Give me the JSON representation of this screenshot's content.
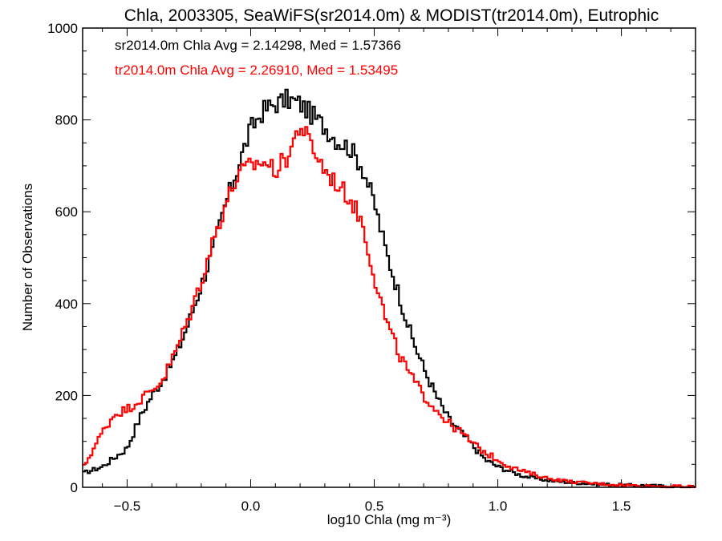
{
  "chart_data": {
    "type": "line",
    "title": "Chla, 2003305, SeaWiFS(sr2014.0m) & MODIST(tr2014.0m), Eutrophic",
    "xlabel": "log10 Chla (mg m⁻³)",
    "ylabel": "Number of Observations",
    "xlim": [
      -0.68,
      1.8
    ],
    "ylim": [
      0,
      1000
    ],
    "xticks": [
      -0.5,
      0.0,
      0.5,
      1.0,
      1.5
    ],
    "xtick_labels": [
      "−0.5",
      "0.0",
      "0.5",
      "1.0",
      "1.5"
    ],
    "yticks": [
      0,
      200,
      400,
      600,
      800,
      1000
    ],
    "ytick_labels": [
      "0",
      "200",
      "400",
      "600",
      "800",
      "1000"
    ],
    "grid": false,
    "annotations": [
      {
        "text": "sr2014.0m Chla Avg = 2.14298, Med = 1.57366",
        "color": "#000000"
      },
      {
        "text": "tr2014.0m Chla Avg = 2.26910, Med = 1.53495",
        "color": "#ff0000"
      }
    ],
    "series": [
      {
        "color": "#000000",
        "style": "step",
        "x": [
          -0.68,
          -0.6,
          -0.5,
          -0.45,
          -0.4,
          -0.35,
          -0.3,
          -0.25,
          -0.2,
          -0.15,
          -0.1,
          -0.05,
          0.0,
          0.05,
          0.1,
          0.15,
          0.2,
          0.25,
          0.3,
          0.35,
          0.4,
          0.45,
          0.5,
          0.55,
          0.6,
          0.65,
          0.7,
          0.75,
          0.8,
          0.85,
          0.9,
          0.95,
          1.0,
          1.05,
          1.1,
          1.2,
          1.3,
          1.4,
          1.5,
          1.6,
          1.7,
          1.8
        ],
        "y": [
          30,
          45,
          85,
          150,
          200,
          240,
          290,
          360,
          440,
          520,
          620,
          700,
          780,
          820,
          835,
          845,
          835,
          810,
          785,
          755,
          740,
          700,
          620,
          510,
          420,
          330,
          260,
          200,
          150,
          120,
          90,
          60,
          45,
          35,
          25,
          15,
          10,
          7,
          5,
          4,
          2,
          1
        ]
      },
      {
        "color": "#ff0000",
        "style": "step",
        "x": [
          -0.68,
          -0.6,
          -0.55,
          -0.5,
          -0.45,
          -0.4,
          -0.35,
          -0.3,
          -0.25,
          -0.2,
          -0.15,
          -0.1,
          -0.05,
          0.0,
          0.05,
          0.1,
          0.15,
          0.2,
          0.25,
          0.3,
          0.35,
          0.4,
          0.45,
          0.5,
          0.55,
          0.6,
          0.65,
          0.7,
          0.75,
          0.8,
          0.85,
          0.9,
          0.95,
          1.0,
          1.05,
          1.1,
          1.2,
          1.3,
          1.4,
          1.5,
          1.6,
          1.7,
          1.8
        ],
        "y": [
          40,
          120,
          160,
          170,
          190,
          210,
          240,
          300,
          370,
          450,
          540,
          620,
          680,
          700,
          710,
          690,
          720,
          790,
          740,
          690,
          660,
          630,
          580,
          460,
          360,
          290,
          240,
          200,
          170,
          140,
          120,
          95,
          75,
          60,
          45,
          35,
          20,
          12,
          8,
          5,
          3,
          2,
          1
        ]
      }
    ]
  }
}
